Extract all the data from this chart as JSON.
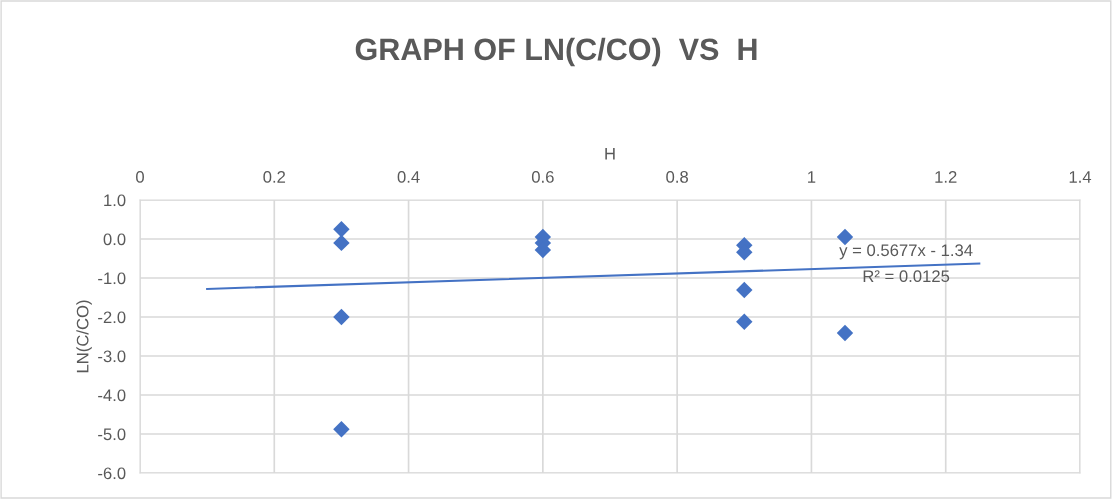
{
  "chart_data": {
    "type": "scatter",
    "title": "GRAPH OF LN(C/CO)  VS  H",
    "xlabel": "H",
    "ylabel": "LN(C/CO)",
    "x": [
      0.3,
      0.3,
      0.3,
      0.3,
      0.6,
      0.6,
      0.6,
      0.9,
      0.9,
      0.9,
      0.9,
      1.05,
      1.05
    ],
    "series": [
      {
        "color": "#4472c4",
        "values": [
          0.25,
          -0.1,
          -2.0,
          -4.88,
          0.05,
          -0.1,
          -0.28,
          -0.16,
          -0.34,
          -1.31,
          -2.12,
          0.05,
          -2.41
        ],
        "marker": "diamond"
      },
      {
        "type": "line",
        "color": "#4472c4",
        "x": [
          0.1,
          1.25
        ],
        "values": [
          -1.28,
          -0.63
        ],
        "marker": "none"
      }
    ],
    "annotations": [
      "y = 0.5677x - 1.34",
      "R² = 0.0125"
    ],
    "xlim": [
      0,
      1.4
    ],
    "xticks": [
      0,
      0.2,
      0.4,
      0.6,
      0.8,
      1,
      1.2,
      1.4
    ],
    "ylim": [
      -6,
      1
    ],
    "yticks": [
      {
        "value": 1,
        "label": "1.0"
      },
      {
        "value": 0,
        "label": "0.0"
      },
      {
        "value": -1,
        "label": "-1.0"
      },
      {
        "value": -2,
        "label": "-2.0"
      },
      {
        "value": -3,
        "label": "-3.0"
      },
      {
        "value": -4,
        "label": "-4.0"
      },
      {
        "value": -5,
        "label": "-5.0"
      },
      {
        "value": -6,
        "label": "-6.0"
      }
    ],
    "grid": true
  }
}
